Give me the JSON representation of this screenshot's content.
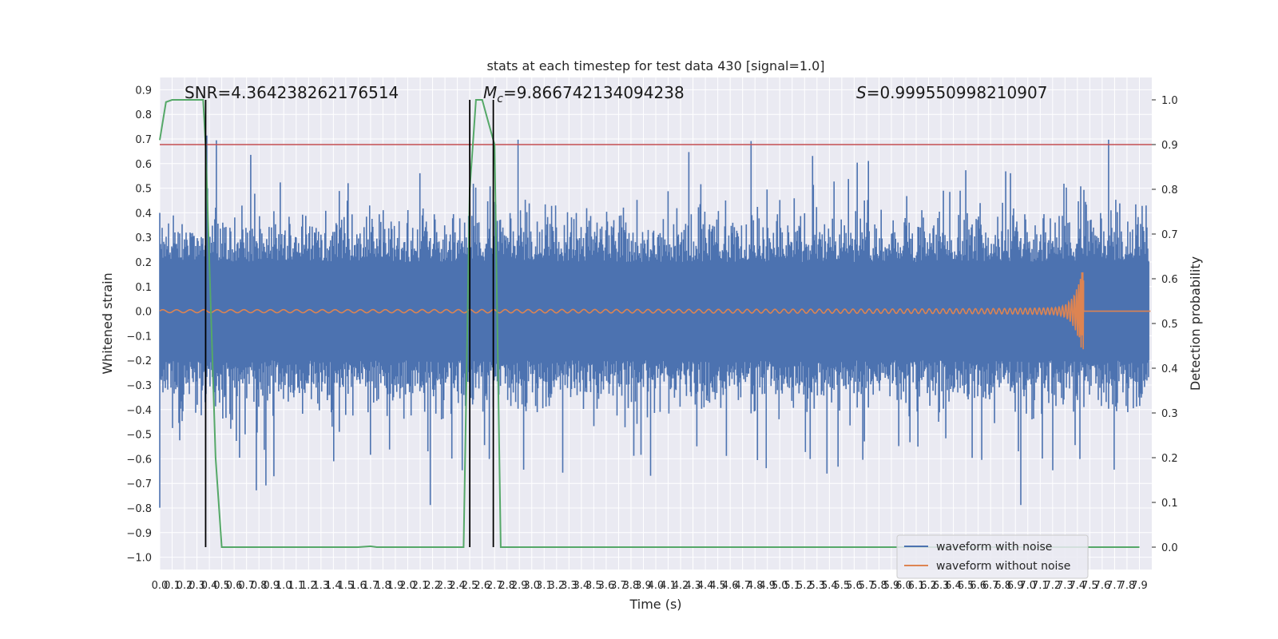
{
  "chart_data": {
    "type": "line",
    "title": "stats at each timestep for test data 430 [signal=1.0]",
    "xlabel": "Time (s)",
    "ylabel": "Whitened strain",
    "ylabel_right": "Detection probability",
    "xlim": [
      0.0,
      8.0
    ],
    "ylim": [
      -1.05,
      0.95
    ],
    "ylim_right": [
      -0.05,
      1.05
    ],
    "x_ticks": [
      "0.0",
      "0.1",
      "0.2",
      "0.3",
      "0.4",
      "0.5",
      "0.6",
      "0.7",
      "0.8",
      "0.9",
      "1.0",
      "1.1",
      "1.2",
      "1.3",
      "1.4",
      "1.5",
      "1.6",
      "1.7",
      "1.8",
      "1.9",
      "2.0",
      "2.1",
      "2.2",
      "2.3",
      "2.4",
      "2.5",
      "2.6",
      "2.7",
      "2.8",
      "2.9",
      "3.0",
      "3.1",
      "3.2",
      "3.3",
      "3.4",
      "3.5",
      "3.6",
      "3.7",
      "3.8",
      "3.9",
      "4.0",
      "4.1",
      "4.2",
      "4.3",
      "4.4",
      "4.5",
      "4.6",
      "4.7",
      "4.8",
      "4.9",
      "5.0",
      "5.1",
      "5.2",
      "5.3",
      "5.4",
      "5.5",
      "5.6",
      "5.7",
      "5.8",
      "5.9",
      "6.0",
      "6.1",
      "6.2",
      "6.3",
      "6.4",
      "6.5",
      "6.6",
      "6.7",
      "6.8",
      "6.9",
      "7.0",
      "7.1",
      "7.2",
      "7.3",
      "7.4",
      "7.5",
      "7.6",
      "7.7",
      "7.8",
      "7.9"
    ],
    "y_ticks": [
      "−1.0",
      "−0.9",
      "−0.8",
      "−0.7",
      "−0.6",
      "−0.5",
      "−0.4",
      "−0.3",
      "−0.2",
      "−0.1",
      "0.0",
      "0.1",
      "0.2",
      "0.3",
      "0.4",
      "0.5",
      "0.6",
      "0.7",
      "0.8",
      "0.9"
    ],
    "y_right_ticks": [
      "0.0",
      "0.1",
      "0.2",
      "0.3",
      "0.4",
      "0.5",
      "0.6",
      "0.7",
      "0.8",
      "0.9",
      "1.0"
    ],
    "annotations": {
      "snr": "SNR=4.364238262176514",
      "mc": "=9.866742134094238",
      "mc_symbol": "M",
      "mc_sub": "c",
      "s": "=0.999550998210907",
      "s_symbol": "S"
    },
    "legend": {
      "placement": "lower-right",
      "entries": [
        "waveform with noise",
        "waveform without noise"
      ]
    },
    "threshold": 0.9,
    "vlines": [
      0.37,
      2.5,
      2.69
    ],
    "detection_probability": {
      "x": [
        0.0,
        0.05,
        0.1,
        0.15,
        0.2,
        0.25,
        0.3,
        0.35,
        0.37,
        0.45,
        0.5,
        0.55,
        0.6,
        0.8,
        1.0,
        1.2,
        1.4,
        1.6,
        1.7,
        1.75,
        1.8,
        2.0,
        2.2,
        2.4,
        2.45,
        2.5,
        2.55,
        2.6,
        2.65,
        2.7,
        2.75,
        2.8,
        3.0,
        4.0,
        5.0,
        6.0,
        7.0,
        7.9
      ],
      "y": [
        0.91,
        0.995,
        1.0,
        1.0,
        1.0,
        1.0,
        1.0,
        1.0,
        0.9,
        0.2,
        0.0,
        0.0,
        0.0,
        0.0,
        0.0,
        0.0,
        0.0,
        0.0,
        0.002,
        0.0,
        0.0,
        0.0,
        0.0,
        0.0,
        0.0,
        0.8,
        1.0,
        1.0,
        0.95,
        0.9,
        0.0,
        0.0,
        0.0,
        0.0,
        0.0,
        0.0,
        0.0,
        0.0
      ]
    },
    "series": [
      {
        "name": "waveform with noise",
        "color": "#4c72b0"
      },
      {
        "name": "waveform without noise",
        "color": "#dd8452",
        "merger_time": 7.45,
        "peak_amplitude": 0.16,
        "base_amplitude": 0.006
      },
      {
        "name": "detection probability",
        "color": "#55a868"
      }
    ],
    "colors": {
      "plot_background": "#eaeaf2",
      "grid": "#ffffff",
      "threshold": "#c44e52",
      "vline": "#000000"
    }
  }
}
